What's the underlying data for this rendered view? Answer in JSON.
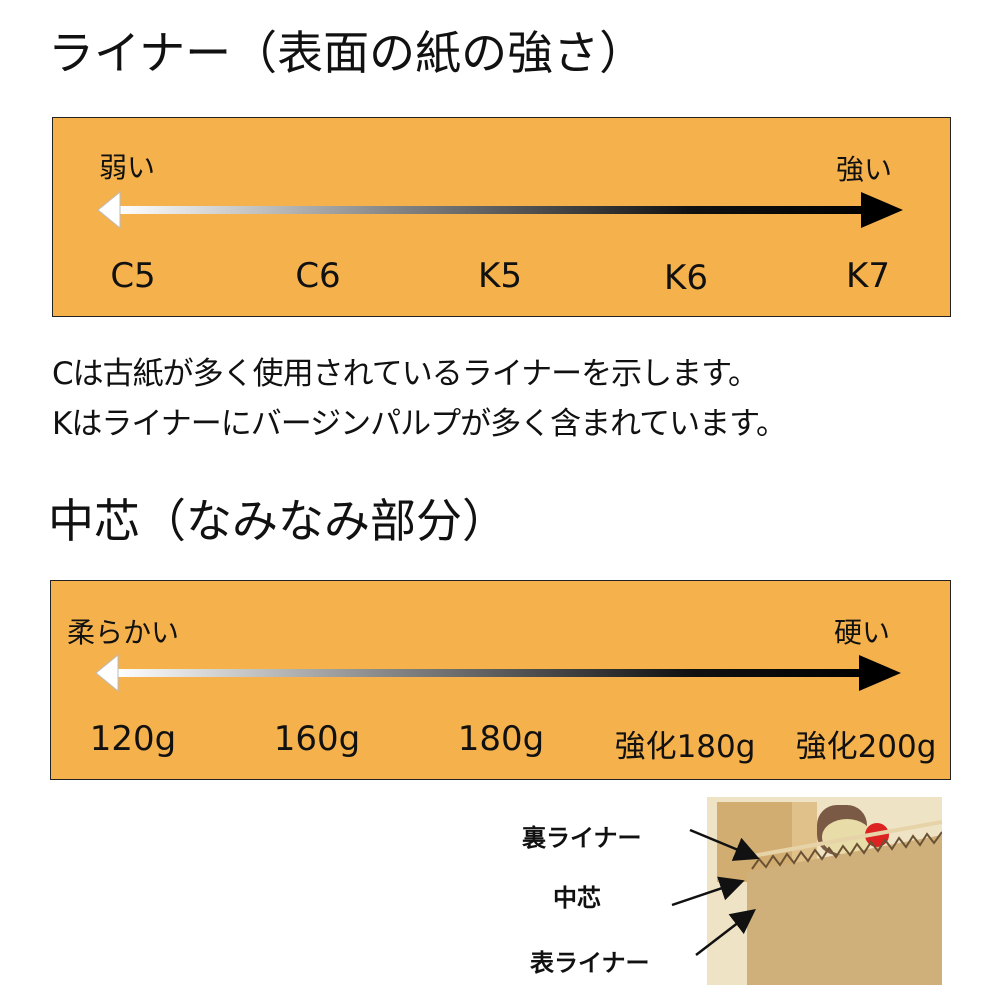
{
  "liner": {
    "heading": "ライナー（表面の紙の強さ）",
    "left_label": "弱い",
    "right_label": "強い",
    "grades": [
      "C5",
      "C6",
      "K5",
      "K6",
      "K7"
    ],
    "notes": [
      "Cは古紙が多く使用されているライナーを示します。",
      "Kはライナーにバージンパルプが多く含まれています。"
    ]
  },
  "medium": {
    "heading": "中芯（なみなみ部分）",
    "left_label": "柔らかい",
    "right_label": "硬い",
    "grades": [
      "120g",
      "160g",
      "180g",
      "強化180g",
      "強化200g"
    ]
  },
  "photo": {
    "labels": {
      "back_liner": "裏ライナー",
      "medium": "中芯",
      "front_liner": "表ライナー"
    }
  },
  "colors": {
    "panel": "#F5B24C",
    "border": "#222222",
    "arrow_light": "#ffffff",
    "arrow_dark": "#000000"
  }
}
